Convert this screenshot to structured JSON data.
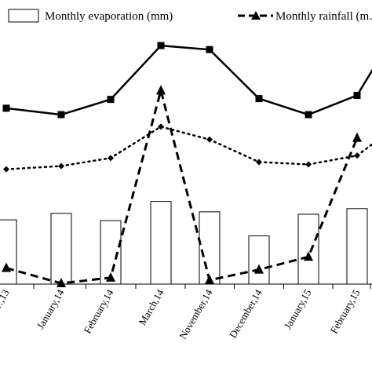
{
  "chart_data": {
    "type": "bar",
    "categories": [
      "…,13",
      "January,14",
      "February,14",
      "March,14",
      "November,14",
      "December,14",
      "January,15",
      "February,15",
      "…"
    ],
    "series": [
      {
        "name": "Monthly evaporation (mm)",
        "kind": "bar",
        "values": [
          80,
          88,
          79,
          103,
          90,
          60,
          87,
          94,
          null
        ]
      },
      {
        "name": "Monthly rainfall (m…",
        "kind": "line",
        "style": "dashed",
        "marker": "triangle",
        "values": [
          20,
          1,
          8,
          241,
          5,
          18,
          34,
          182,
          null
        ]
      },
      {
        "name": "",
        "kind": "line",
        "style": "dotted",
        "marker": "diamond",
        "values": [
          143,
          147,
          157,
          196,
          180,
          152,
          149,
          160,
          185
        ]
      },
      {
        "name": "",
        "kind": "line",
        "style": "solid",
        "marker": "square",
        "values": [
          219,
          211,
          230,
          297,
          292,
          231,
          211,
          235,
          290
        ]
      }
    ],
    "ylim": [
      0,
      300
    ],
    "grid": false,
    "legend": "top",
    "colors": {
      "ink": "#000000",
      "bar_fill": "#ffffff"
    }
  }
}
